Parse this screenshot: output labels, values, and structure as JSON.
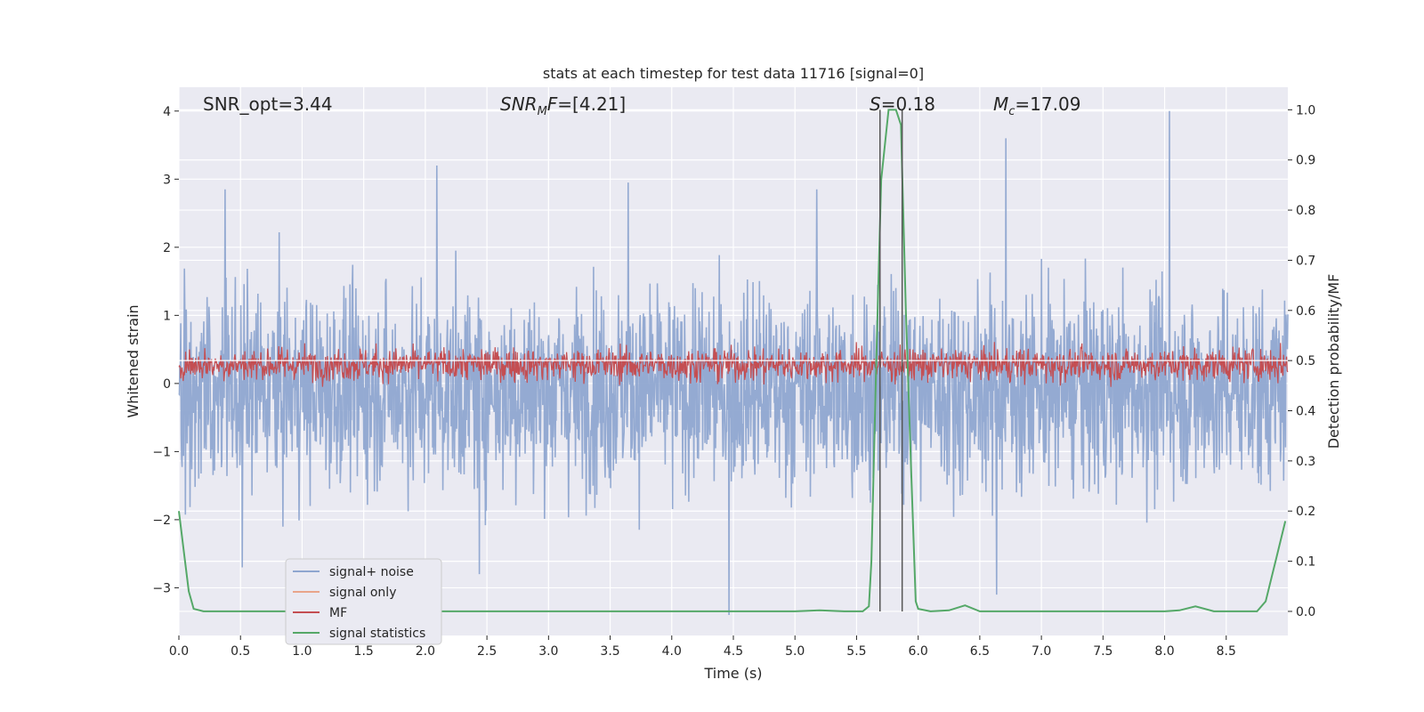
{
  "chart_data": {
    "type": "line",
    "title": "stats at each timestep for test data 11716 [signal=0]",
    "xlabel": "Time (s)",
    "ylabel": "Whitened strain",
    "ylabel_right": "Detection probability/MF",
    "xlim": [
      0,
      9.0
    ],
    "ylim": [
      -3.7,
      4.35
    ],
    "ylim_right": [
      -0.048,
      1.045
    ],
    "x_ticks": [
      "0.0",
      "0.5",
      "1.0",
      "1.5",
      "2.0",
      "2.5",
      "3.0",
      "3.5",
      "4.0",
      "4.5",
      "5.0",
      "5.5",
      "6.0",
      "6.5",
      "7.0",
      "7.5",
      "8.0",
      "8.5"
    ],
    "y_ticks": [
      "4",
      "3",
      "2",
      "1",
      "0",
      "−1",
      "−2",
      "−3"
    ],
    "y_right_ticks": [
      "1.0",
      "0.9",
      "0.8",
      "0.7",
      "0.6",
      "0.5",
      "0.4",
      "0.3",
      "0.2",
      "0.1",
      "0.0"
    ],
    "grid": true,
    "legend_position": "lower-left",
    "annotations": {
      "snr_opt": "SNR_opt=3.44",
      "snr_mf": "=[4.21]",
      "snr_mf_symbol": "SNR",
      "snr_mf_sub": "M",
      "snr_mf_tail": "F",
      "s_stat": "=0.18",
      "s_symbol": "S",
      "mc": "=17.09",
      "mc_symbol": "M",
      "mc_sub": "c"
    },
    "vertical_markers_x": [
      5.69,
      5.87
    ],
    "series": [
      {
        "name": "signal+ noise",
        "color": "#8fa6d0",
        "style": "noise",
        "center": -0.1,
        "amplitude": 1.2,
        "peaks_max": [
          2.85,
          3.2,
          2.95,
          2.85,
          3.6,
          4.0
        ],
        "peaks_min": [
          -2.7,
          -2.8,
          -3.4,
          -3.1
        ]
      },
      {
        "name": "signal only",
        "color": "#e9a58a",
        "style": "flat",
        "values": []
      },
      {
        "name": "MF",
        "color": "#c44e52",
        "style": "band",
        "center": 0.28,
        "amplitude": 0.38
      },
      {
        "name": "signal statistics",
        "color": "#55a868",
        "axis": "right",
        "x": [
          0.0,
          0.04,
          0.08,
          0.12,
          0.2,
          0.5,
          1.0,
          2.0,
          3.0,
          4.0,
          4.5,
          5.0,
          5.2,
          5.4,
          5.55,
          5.6,
          5.62,
          5.66,
          5.7,
          5.76,
          5.82,
          5.86,
          5.9,
          5.94,
          5.98,
          6.0,
          6.1,
          6.25,
          6.38,
          6.5,
          7.0,
          8.0,
          8.12,
          8.25,
          8.4,
          8.6,
          8.75,
          8.82,
          8.9,
          8.98
        ],
        "values": [
          0.2,
          0.12,
          0.04,
          0.005,
          0.0,
          0.0,
          0.0,
          0.0,
          0.0,
          0.0,
          0.0,
          0.0,
          0.002,
          0.0,
          0.0,
          0.01,
          0.1,
          0.5,
          0.86,
          1.0,
          1.0,
          0.97,
          0.6,
          0.3,
          0.02,
          0.005,
          0.0,
          0.002,
          0.012,
          0.0,
          0.0,
          0.0,
          0.002,
          0.01,
          0.0,
          0.0,
          0.0,
          0.02,
          0.1,
          0.18
        ]
      }
    ]
  },
  "colors": {
    "plot_bg": "#eaeaf2",
    "grid": "#ffffff",
    "marker": "#555555"
  }
}
